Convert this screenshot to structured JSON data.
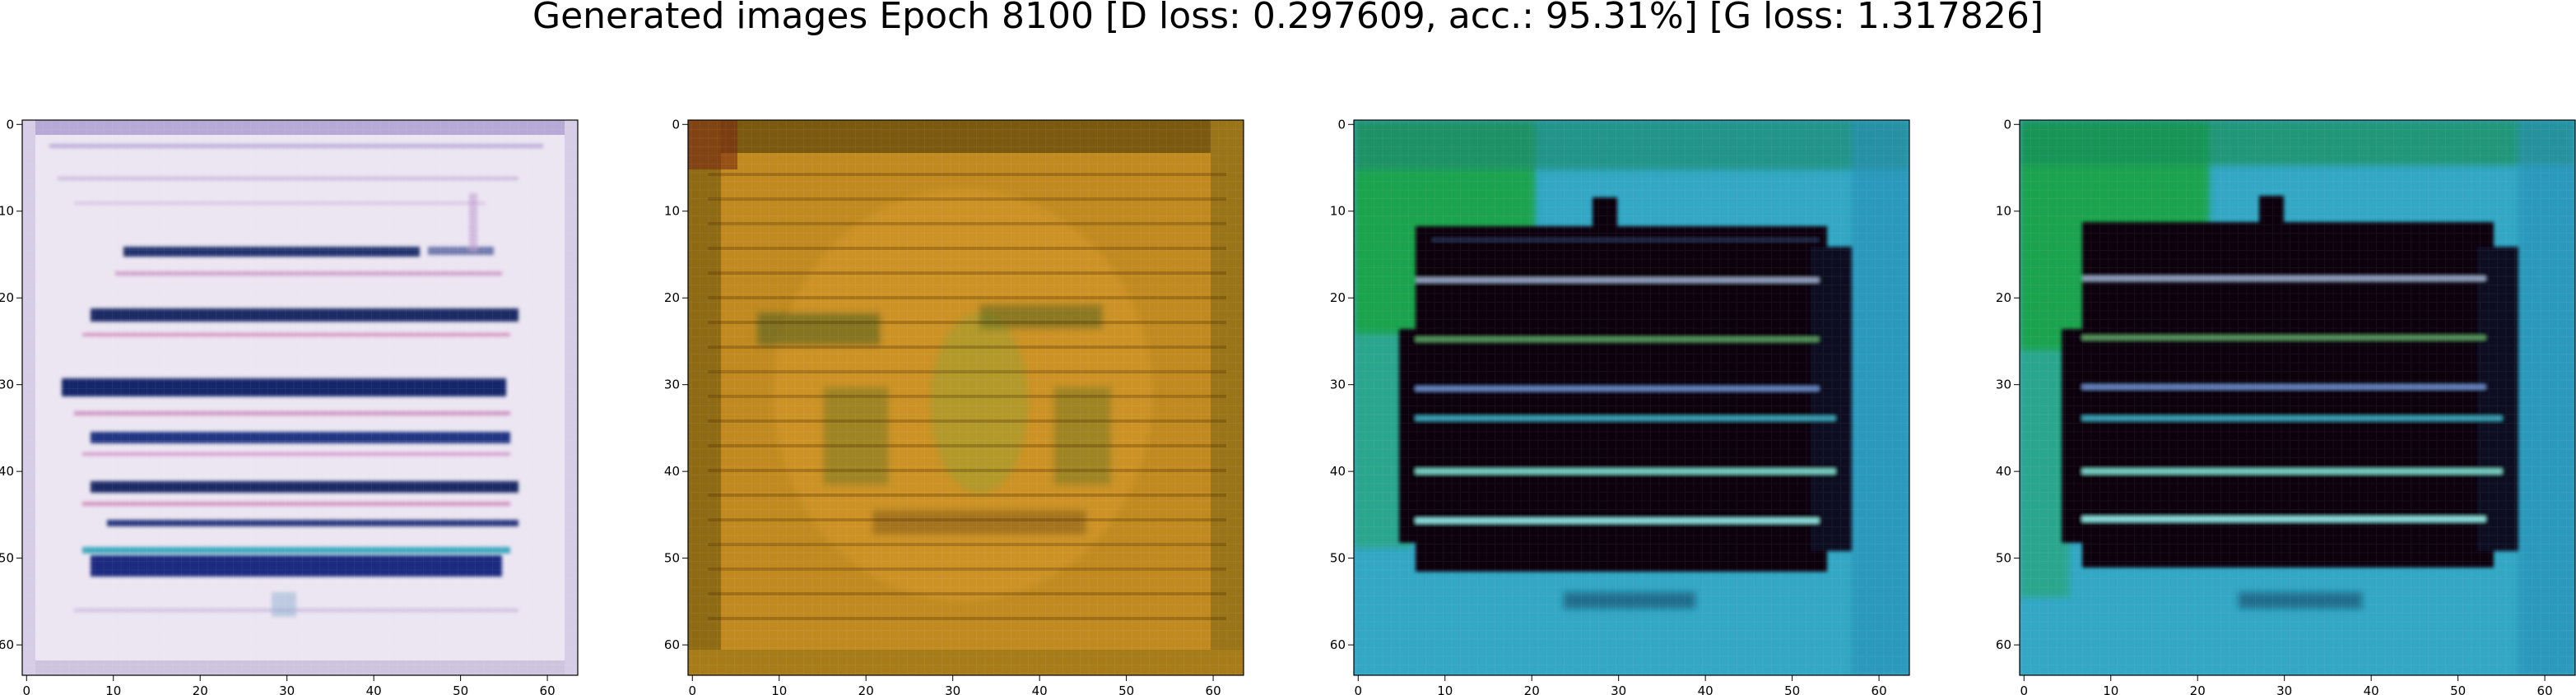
{
  "figure": {
    "title": "Generated images Epoch 8100 [D loss: 0.297609, acc.: 95.31%] [G loss: 1.317826]"
  },
  "axis_ticks": {
    "x": [
      "0",
      "10",
      "20",
      "30",
      "40",
      "50",
      "60"
    ],
    "y": [
      "0",
      "10",
      "20",
      "30",
      "40",
      "50",
      "60"
    ]
  },
  "panels": [
    {
      "name": "generated-image-1",
      "description_colors": {
        "background": "#ece6f2",
        "band": "#1a2a6a",
        "accent": "#c25aa0"
      },
      "motif": "light lavender field with dark navy horizontal text-like stripes"
    },
    {
      "name": "generated-image-2",
      "description_colors": {
        "background": "#c18a20",
        "band": "#6a4a10",
        "accent": "#2f6a2a"
      },
      "motif": "mustard orange field with fine horizontal striping and faint central oval"
    },
    {
      "name": "generated-image-3",
      "description_colors": {
        "background": "#33a7c4",
        "band": "#0a0010",
        "accent": "#1ba23a"
      },
      "motif": "cyan field with green upper-left corner and large black block crossed by light stripes"
    },
    {
      "name": "generated-image-4",
      "description_colors": {
        "background": "#33a7c4",
        "band": "#0a0010",
        "accent": "#1ba23a"
      },
      "motif": "cyan field with green left edge and large black block crossed by light stripes"
    }
  ]
}
